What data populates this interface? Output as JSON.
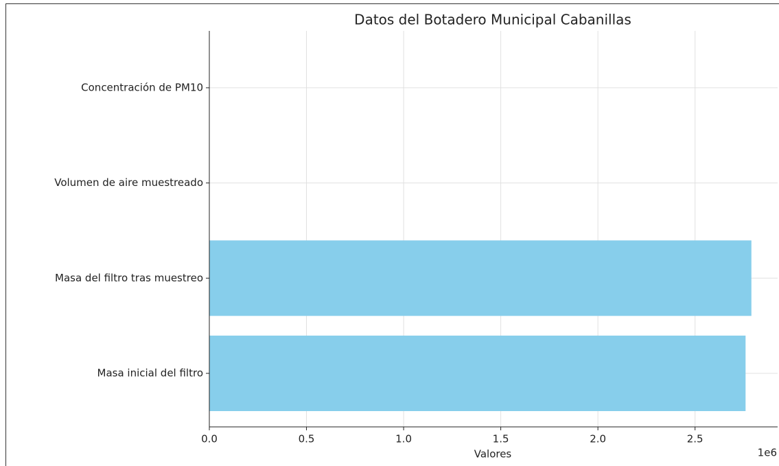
{
  "chart_data": {
    "type": "barh",
    "title": "Datos del Botadero Municipal Cabanillas",
    "xlabel": "Valores",
    "x_offset_label": "1e6",
    "categories": [
      "Masa inicial del filtro",
      "Masa del filtro tras muestreo",
      "Volumen de aire muestreado",
      "Concentración de PM10"
    ],
    "values": [
      2760000,
      2790000,
      0,
      0
    ],
    "color": "#87ceeb",
    "xlim": [
      0,
      2925000
    ],
    "xticks": [
      {
        "value": 0,
        "label": "0.0"
      },
      {
        "value": 500000,
        "label": "0.5"
      },
      {
        "value": 1000000,
        "label": "1.0"
      },
      {
        "value": 1500000,
        "label": "1.5"
      },
      {
        "value": 2000000,
        "label": "2.0"
      },
      {
        "value": 2500000,
        "label": "2.5"
      }
    ],
    "grid": true
  }
}
